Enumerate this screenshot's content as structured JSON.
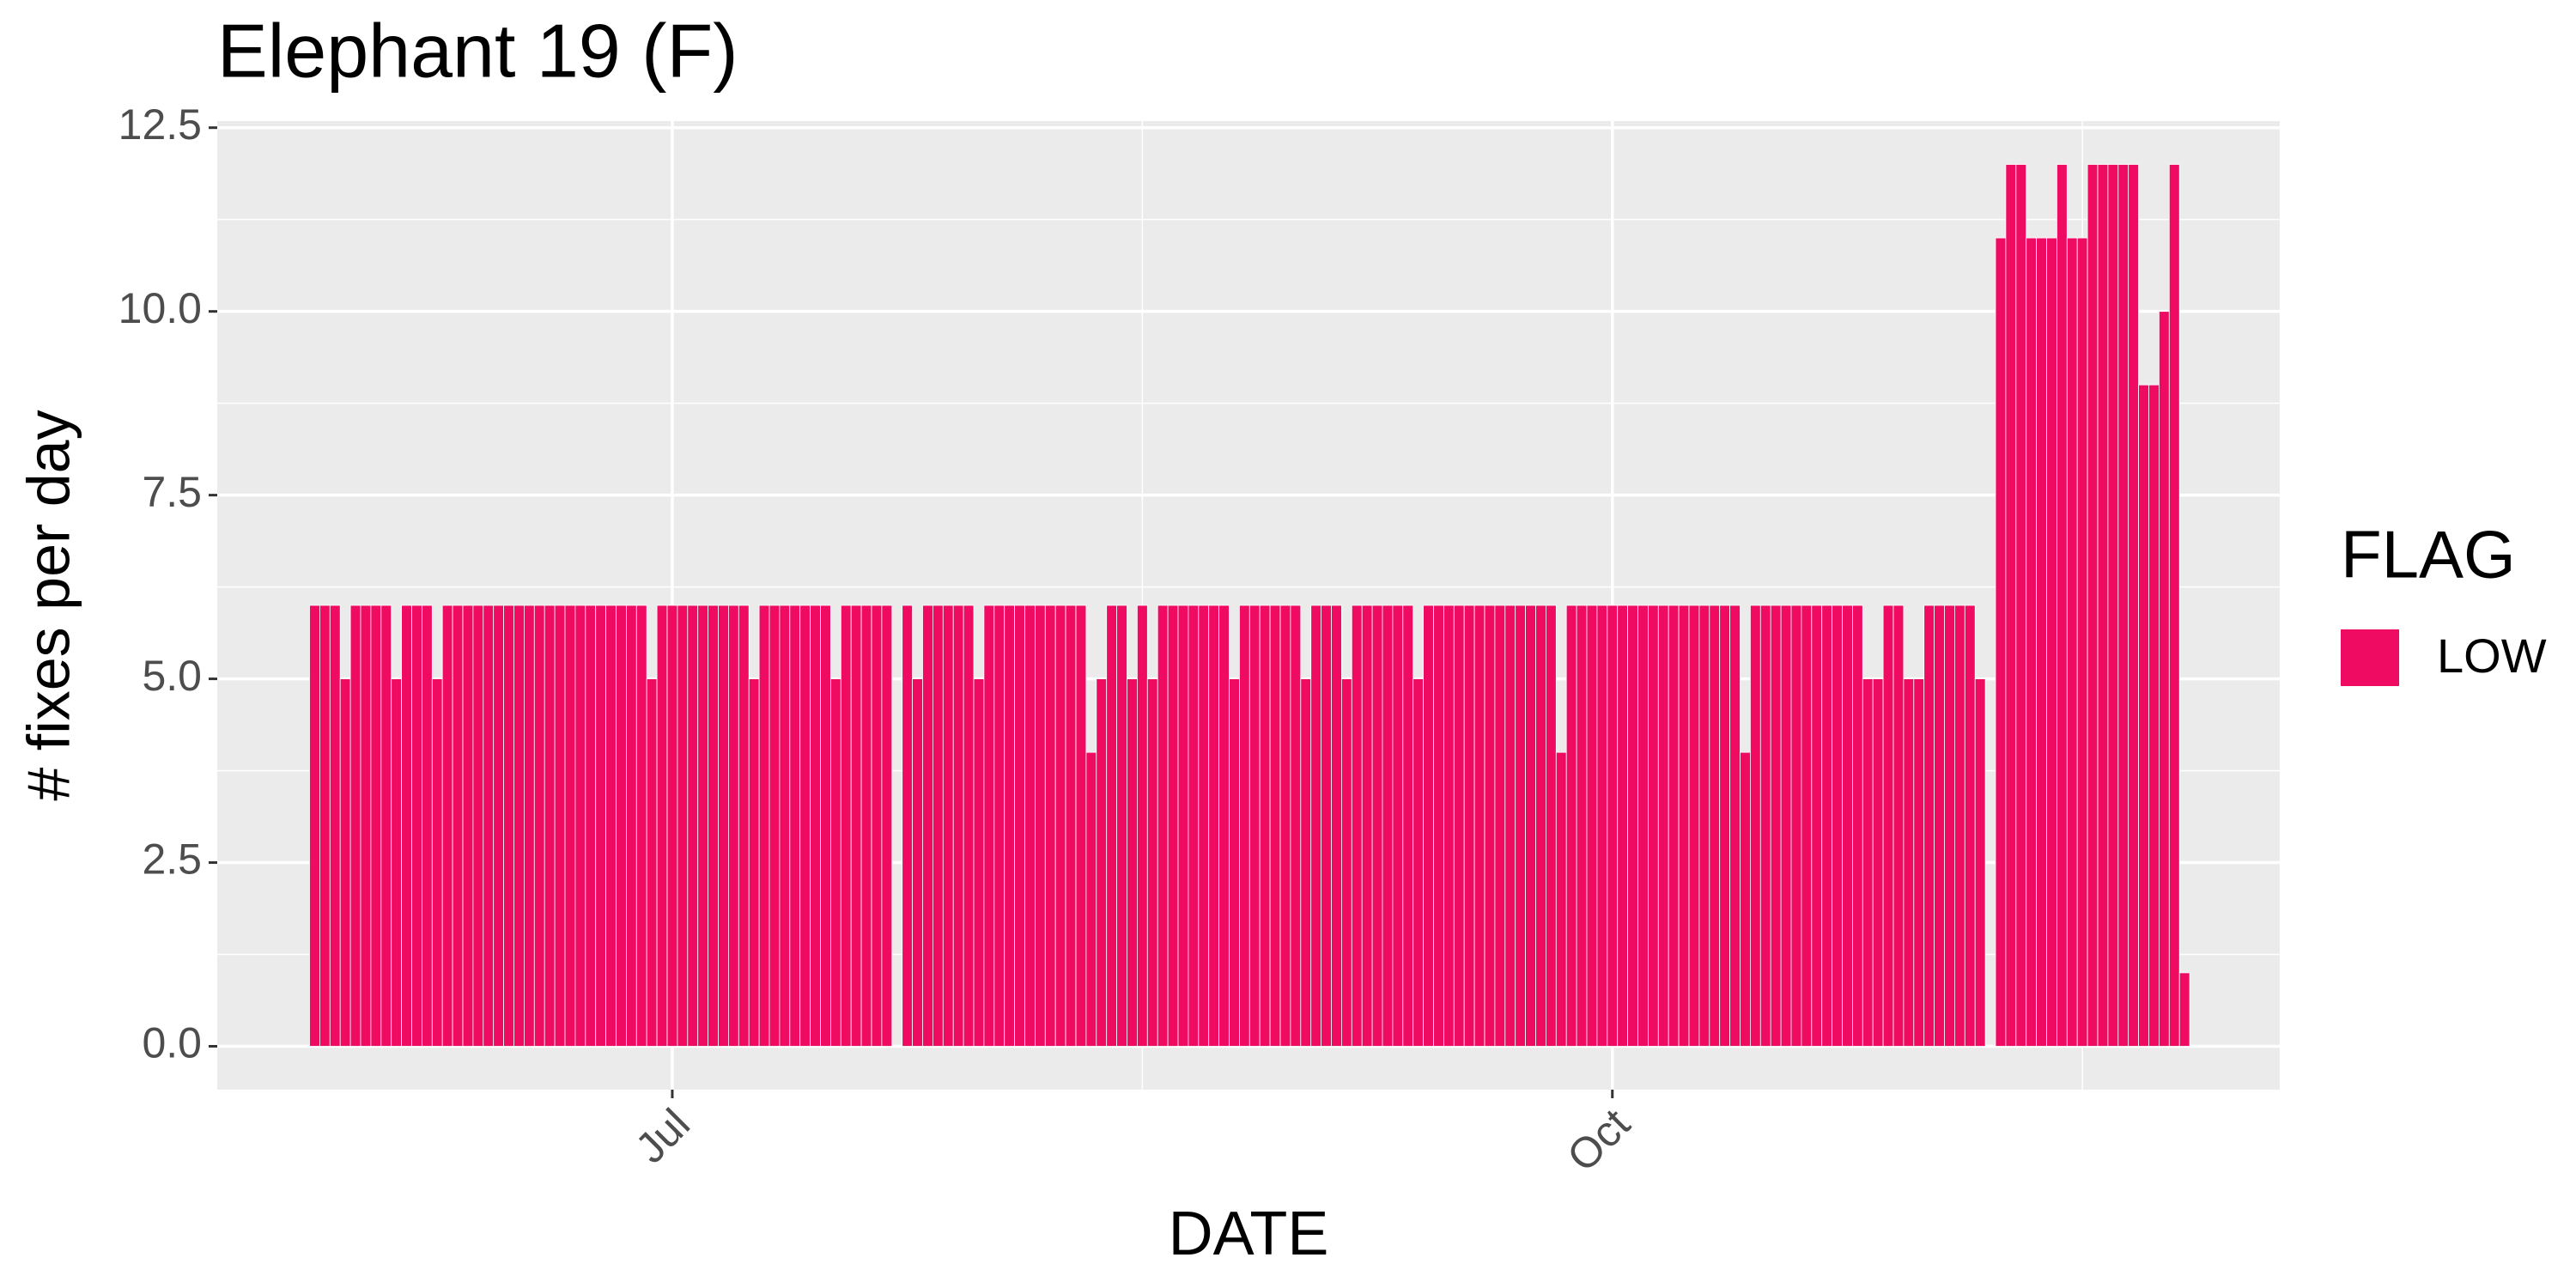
{
  "chart_data": {
    "type": "bar",
    "title": "Elephant 19 (F)",
    "x_label": "DATE",
    "y_label": "# fixes per day",
    "legend_title": "FLAG",
    "grid": true,
    "categories": [
      null,
      null,
      null,
      null,
      null,
      null,
      null,
      null,
      null,
      null,
      null,
      null,
      null,
      null,
      null,
      null,
      null,
      null,
      null,
      null,
      null,
      null,
      null,
      null,
      null,
      null,
      null,
      null,
      null,
      null,
      null,
      null,
      null,
      null,
      null,
      "Jul",
      null,
      null,
      null,
      null,
      null,
      null,
      null,
      null,
      null,
      null,
      null,
      null,
      null,
      null,
      null,
      null,
      null,
      null,
      null,
      null,
      null,
      null,
      null,
      null,
      null,
      null,
      null,
      null,
      null,
      null,
      null,
      null,
      null,
      null,
      null,
      null,
      null,
      null,
      null,
      null,
      null,
      null,
      null,
      null,
      null,
      null,
      null,
      null,
      null,
      null,
      null,
      null,
      null,
      null,
      null,
      null,
      null,
      null,
      null,
      null,
      null,
      null,
      null,
      null,
      null,
      null,
      null,
      null,
      null,
      null,
      null,
      null,
      null,
      null,
      null,
      null,
      null,
      null,
      null,
      null,
      null,
      null,
      null,
      null,
      null,
      null,
      null,
      null,
      null,
      null,
      null,
      "Oct",
      null,
      null,
      null,
      null,
      null,
      null,
      null,
      null,
      null,
      null,
      null,
      null,
      null,
      null,
      null,
      null,
      null,
      null,
      null,
      null,
      null,
      null,
      null,
      null,
      null,
      null,
      null,
      null,
      null,
      null,
      null,
      null,
      null,
      null,
      null,
      null,
      null,
      null,
      null,
      null,
      null,
      null,
      null,
      null,
      null,
      null,
      null,
      null,
      null,
      null,
      null,
      null,
      null,
      null,
      null,
      null
    ],
    "series": [
      {
        "name": "LOW",
        "color": "#ef0a62",
        "values": [
          6,
          6,
          6,
          5,
          6,
          6,
          6,
          6,
          5,
          6,
          6,
          6,
          5,
          6,
          6,
          6,
          6,
          6,
          6,
          6,
          6,
          6,
          6,
          6,
          6,
          6,
          6,
          6,
          6,
          6,
          6,
          6,
          6,
          5,
          6,
          6,
          6,
          6,
          6,
          6,
          6,
          6,
          6,
          5,
          6,
          6,
          6,
          6,
          6,
          6,
          6,
          5,
          6,
          6,
          6,
          6,
          6,
          null,
          6,
          5,
          6,
          6,
          6,
          6,
          6,
          5,
          6,
          6,
          6,
          6,
          6,
          6,
          6,
          6,
          6,
          6,
          4,
          5,
          6,
          6,
          5,
          6,
          5,
          6,
          6,
          6,
          6,
          6,
          6,
          6,
          5,
          6,
          6,
          6,
          6,
          6,
          6,
          5,
          6,
          6,
          6,
          5,
          6,
          6,
          6,
          6,
          6,
          6,
          5,
          6,
          6,
          6,
          6,
          6,
          6,
          6,
          6,
          6,
          6,
          6,
          6,
          6,
          4,
          6,
          6,
          6,
          6,
          6,
          6,
          6,
          6,
          6,
          6,
          6,
          6,
          6,
          6,
          6,
          6,
          6,
          4,
          6,
          6,
          6,
          6,
          6,
          6,
          6,
          6,
          6,
          6,
          6,
          5,
          5,
          6,
          6,
          5,
          5,
          6,
          6,
          6,
          6,
          6,
          5,
          null,
          11,
          12,
          12,
          11,
          11,
          11,
          12,
          11,
          11,
          12,
          12,
          12,
          12,
          12,
          9,
          9,
          10,
          12,
          1
        ]
      }
    ],
    "ylim": [
      -0.59,
      12.59
    ],
    "yticks": [
      {
        "value": 0,
        "label": "0.0"
      },
      {
        "value": 2.5,
        "label": "2.5"
      },
      {
        "value": 5,
        "label": "5.0"
      },
      {
        "value": 7.5,
        "label": "7.5"
      },
      {
        "value": 10,
        "label": "10.0"
      },
      {
        "value": 12.5,
        "label": "12.5"
      }
    ]
  }
}
